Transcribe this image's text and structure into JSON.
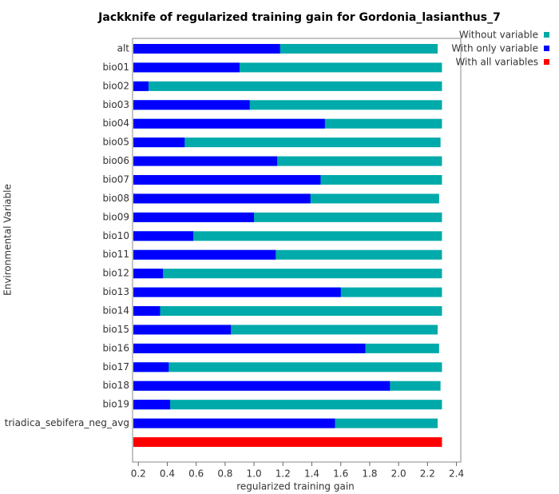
{
  "chart_data": {
    "type": "bar",
    "orientation": "horizontal",
    "title": "Jackknife of regularized training gain for Gordonia_lasianthus_7",
    "x_label": "regularized training gain",
    "y_label": "Environmental Variable",
    "categories": [
      "alt",
      "bio01",
      "bio02",
      "bio03",
      "bio04",
      "bio05",
      "bio06",
      "bio07",
      "bio08",
      "bio09",
      "bio10",
      "bio11",
      "bio12",
      "bio13",
      "bio14",
      "bio15",
      "bio16",
      "bio17",
      "bio18",
      "bio19",
      "triadica_sebifera_neg_avg",
      null
    ],
    "series": [
      {
        "name": "Without variable",
        "color": "#00aaaa",
        "values": [
          2.27,
          2.3,
          2.3,
          2.3,
          2.3,
          2.29,
          2.3,
          2.3,
          2.28,
          2.3,
          2.3,
          2.3,
          2.3,
          2.3,
          2.3,
          2.27,
          2.28,
          2.3,
          2.29,
          2.3,
          2.27,
          null
        ]
      },
      {
        "name": "With only variable",
        "color": "#0000ff",
        "values": [
          1.18,
          0.9,
          0.27,
          0.97,
          1.49,
          0.52,
          1.16,
          1.46,
          1.39,
          1.0,
          0.58,
          1.15,
          0.37,
          1.6,
          0.35,
          0.84,
          1.77,
          0.41,
          1.94,
          0.42,
          1.56,
          null
        ]
      },
      {
        "name": "With all variables",
        "color": "#ff0000",
        "values": [
          null,
          null,
          null,
          null,
          null,
          null,
          null,
          null,
          null,
          null,
          null,
          null,
          null,
          null,
          null,
          null,
          null,
          null,
          null,
          null,
          null,
          2.3
        ]
      }
    ],
    "xlim": [
      0.16,
      2.43
    ],
    "xticks": [
      0.2,
      0.4,
      0.6,
      0.8,
      {
        "value": 1,
        "label": "1.0"
      },
      1.2,
      1.4,
      1.6,
      1.8,
      {
        "value": 2,
        "label": "2.0"
      },
      2.2,
      2.4
    ],
    "legend": "top-right"
  }
}
